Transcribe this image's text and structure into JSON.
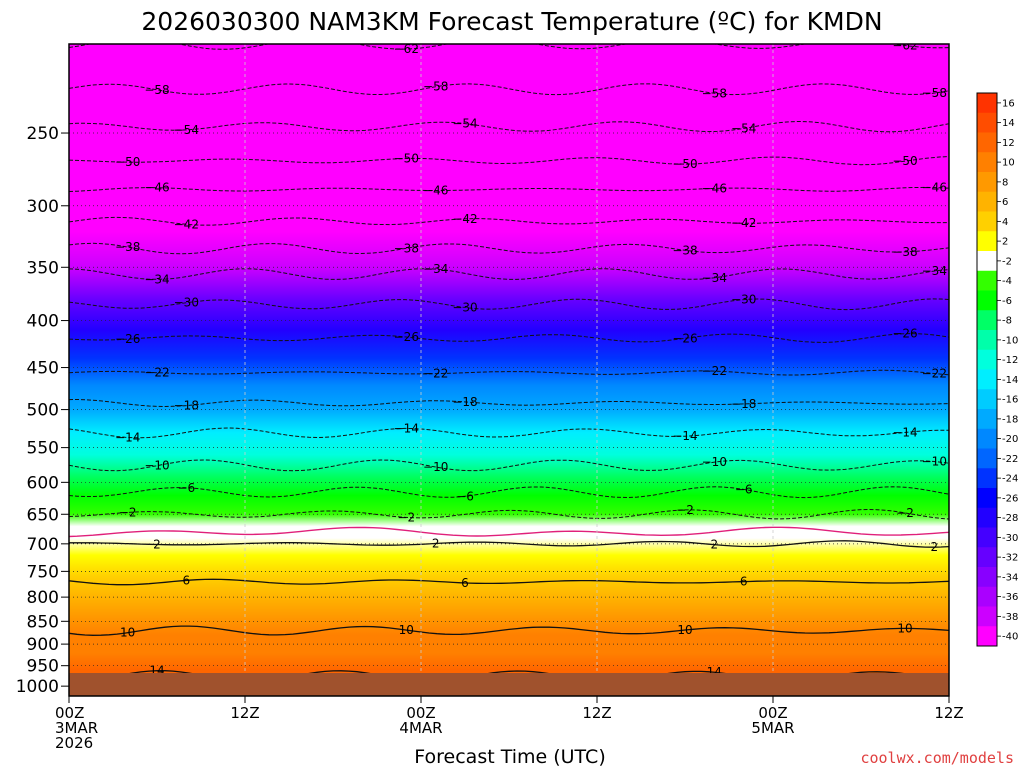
{
  "title": "2026030300 NAM3KM Forecast Temperature (ºC) for KMDN",
  "xlabel": "Forecast Time (UTC)",
  "credit": "coolwx.com/models",
  "chart_data": {
    "type": "heatmap",
    "title": "2026030300 NAM3KM Forecast Temperature (ºC) for KMDN",
    "xlabel": "Forecast Time (UTC)",
    "ylabel": "",
    "x_ticks": [
      {
        "hour": 0,
        "lines": [
          "00Z",
          "3MAR",
          "2026"
        ]
      },
      {
        "hour": 12,
        "lines": [
          "12Z"
        ]
      },
      {
        "hour": 24,
        "lines": [
          "00Z",
          "4MAR"
        ]
      },
      {
        "hour": 36,
        "lines": [
          "12Z"
        ]
      },
      {
        "hour": 48,
        "lines": [
          "00Z",
          "5MAR"
        ]
      },
      {
        "hour": 60,
        "lines": [
          "12Z"
        ]
      }
    ],
    "xlim": [
      0,
      60
    ],
    "y_ticks": [
      250,
      300,
      350,
      400,
      450,
      500,
      550,
      600,
      650,
      700,
      750,
      800,
      850,
      900,
      950,
      1000
    ],
    "ylim": [
      1025,
      200
    ],
    "y_scale": "log",
    "ground_level_hPa": 1000,
    "colorbar": {
      "labels": [
        "16",
        "14",
        "12",
        "10",
        "8",
        "6",
        "4",
        "2",
        "-2",
        "-4",
        "-6",
        "-8",
        "-10",
        "-12",
        "-14",
        "-16",
        "-18",
        "-20",
        "-22",
        "-24",
        "-26",
        "-28",
        "-30",
        "-32",
        "-34",
        "-36",
        "-38",
        "-40"
      ],
      "colors": [
        "#ff3300",
        "#ff4d00",
        "#ff6600",
        "#ff8000",
        "#ff9900",
        "#ffb300",
        "#ffd000",
        "#ffff00",
        "#ffffff",
        "#33ff00",
        "#00ff00",
        "#00ff66",
        "#00ffaa",
        "#00ffdd",
        "#00eeff",
        "#00ccff",
        "#00aaff",
        "#0088ff",
        "#0066ff",
        "#0033ff",
        "#0000ff",
        "#2200ff",
        "#4400ff",
        "#6600ff",
        "#8800ff",
        "#aa00ff",
        "#cc00ff",
        "#ff00ff"
      ]
    },
    "temperature_profile": {
      "pressure_hPa": [
        200,
        230,
        260,
        290,
        320,
        350,
        380,
        410,
        440,
        470,
        500,
        530,
        560,
        590,
        620,
        650,
        670,
        690,
        720,
        760,
        800,
        840,
        880,
        920,
        960,
        1000
      ],
      "temp_c": [
        -64,
        -59,
        -54,
        -49,
        -43,
        -37,
        -32,
        -28,
        -24,
        -20,
        -17,
        -14,
        -11,
        -8,
        -6,
        -3,
        -1,
        1,
        2,
        4,
        6,
        8,
        10,
        11,
        12,
        13
      ]
    },
    "contours": [
      {
        "value": -62,
        "pressure_hPa": 200
      },
      {
        "value": -58,
        "pressure_hPa": 224
      },
      {
        "value": -54,
        "pressure_hPa": 246
      },
      {
        "value": -50,
        "pressure_hPa": 268
      },
      {
        "value": -46,
        "pressure_hPa": 288
      },
      {
        "value": -42,
        "pressure_hPa": 312
      },
      {
        "value": -38,
        "pressure_hPa": 334
      },
      {
        "value": -34,
        "pressure_hPa": 356
      },
      {
        "value": -30,
        "pressure_hPa": 384
      },
      {
        "value": -26,
        "pressure_hPa": 418
      },
      {
        "value": -22,
        "pressure_hPa": 456
      },
      {
        "value": -18,
        "pressure_hPa": 492
      },
      {
        "value": -14,
        "pressure_hPa": 530
      },
      {
        "value": -10,
        "pressure_hPa": 575
      },
      {
        "value": -6,
        "pressure_hPa": 615
      },
      {
        "value": -2,
        "pressure_hPa": 650
      },
      {
        "value": 2,
        "pressure_hPa": 700
      },
      {
        "value": 6,
        "pressure_hPa": 770
      },
      {
        "value": 10,
        "pressure_hPa": 870
      },
      {
        "value": 14,
        "pressure_hPa": 975
      }
    ],
    "freezing_level_hPa": 680,
    "grid": true
  }
}
